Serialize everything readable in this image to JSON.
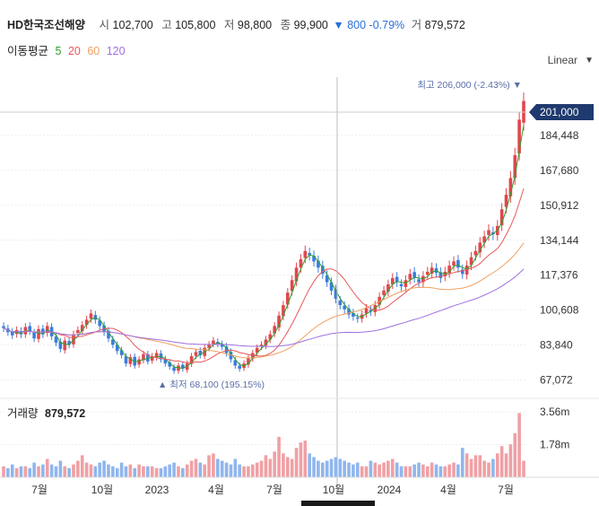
{
  "header": {
    "name": "HD한국조선해양",
    "open_label": "시",
    "open": "102,700",
    "high_label": "고",
    "high": "105,800",
    "low_label": "저",
    "low": "98,800",
    "close_label": "종",
    "close": "99,900",
    "change_arrow": "▼",
    "change": "800",
    "change_pct": "-0.79%",
    "volume_label": "거",
    "volume": "879,572"
  },
  "ma_legend": {
    "title": "이동평균",
    "ma5": "5",
    "ma20": "20",
    "ma60": "60",
    "ma120": "120"
  },
  "colors": {
    "up": "#e0474c",
    "down": "#3b7ddd",
    "ma5": "#2ca02c",
    "ma20": "#e8575a",
    "ma60": "#f0a060",
    "ma120": "#a070e0",
    "price_tag": "#1f3a6e",
    "annotation": "#5b6fa8"
  },
  "scale": {
    "label": "Linear",
    "arrow": "▼"
  },
  "annotations": {
    "high": "최고 206,000 (-2.43%) ▼",
    "low": "▲ 최저 68,100 (195.15%)",
    "last_price": "201,000"
  },
  "volume_panel": {
    "label": "거래량",
    "value": "879,572"
  },
  "chart_data": {
    "type": "candlestick",
    "price_axis": {
      "ticks": [
        "184,448",
        "167,680",
        "150,912",
        "134,144",
        "117,376",
        "100,608",
        "83,840",
        "67,072"
      ],
      "range": [
        60000,
        215000
      ],
      "scale": "linear"
    },
    "volume_axis": {
      "ticks": [
        "3.56m",
        "1.78m"
      ],
      "range": [
        0,
        4200000
      ]
    },
    "x_ticks": [
      "7월",
      "10월",
      "2023",
      "4월",
      "7월",
      "10월",
      "2024",
      "4월",
      "7월"
    ],
    "series_close": [
      92000,
      90000,
      88500,
      91000,
      89000,
      92500,
      90500,
      87000,
      91500,
      89000,
      93000,
      88000,
      85000,
      82000,
      86000,
      84000,
      89000,
      91000,
      93500,
      96000,
      99000,
      96000,
      93000,
      90000,
      87000,
      84000,
      81000,
      79000,
      75000,
      78000,
      74000,
      77000,
      79500,
      76000,
      78500,
      80000,
      77000,
      75000,
      73500,
      71500,
      74000,
      72500,
      75000,
      78500,
      80500,
      79000,
      82500,
      84000,
      86000,
      84500,
      83000,
      80000,
      77000,
      74000,
      72500,
      75000,
      77500,
      80000,
      82500,
      84000,
      86500,
      89000,
      93000,
      98000,
      103000,
      109000,
      115000,
      121000,
      125000,
      129000,
      127000,
      124000,
      121000,
      118000,
      114000,
      110000,
      106000,
      103000,
      101000,
      98500,
      97500,
      96500,
      98500,
      101500,
      99900,
      103000,
      107000,
      110000,
      113000,
      116000,
      114000,
      112000,
      115000,
      118000,
      116000,
      114000,
      117000,
      119000,
      121000,
      118500,
      116000,
      119000,
      122000,
      124000,
      121000,
      118000,
      122000,
      126000,
      129000,
      133000,
      136000,
      139000,
      137000,
      141000,
      149000,
      156000,
      164000,
      175000,
      192000,
      201000
    ],
    "volume": [
      0.6,
      0.5,
      0.7,
      0.5,
      0.6,
      0.6,
      0.5,
      0.8,
      0.6,
      0.7,
      1.0,
      0.7,
      0.6,
      0.9,
      0.6,
      0.5,
      0.7,
      0.9,
      1.2,
      0.8,
      0.7,
      0.6,
      0.8,
      0.9,
      0.7,
      0.6,
      0.5,
      0.8,
      0.6,
      0.7,
      0.5,
      0.7,
      0.6,
      0.6,
      0.6,
      0.5,
      0.5,
      0.6,
      0.7,
      0.8,
      0.6,
      0.5,
      0.7,
      0.9,
      1.0,
      0.8,
      0.7,
      1.2,
      1.3,
      1.0,
      0.9,
      0.8,
      0.7,
      1.0,
      0.7,
      0.6,
      0.6,
      0.7,
      0.8,
      0.9,
      1.2,
      1.0,
      1.4,
      2.2,
      1.3,
      1.1,
      1.0,
      1.6,
      1.9,
      2.0,
      1.3,
      1.1,
      0.9,
      0.8,
      0.9,
      1.0,
      1.1,
      1.0,
      0.9,
      0.8,
      0.7,
      0.8,
      0.6,
      0.6,
      0.9,
      0.8,
      0.7,
      0.8,
      0.9,
      1.0,
      0.8,
      0.6,
      0.6,
      0.6,
      0.7,
      0.8,
      0.7,
      0.6,
      0.8,
      0.7,
      0.6,
      0.6,
      0.7,
      0.8,
      0.7,
      1.6,
      1.3,
      1.0,
      1.2,
      1.2,
      0.9,
      0.8,
      1.0,
      1.3,
      1.7,
      1.3,
      1.8,
      2.4,
      3.5,
      0.9
    ]
  }
}
